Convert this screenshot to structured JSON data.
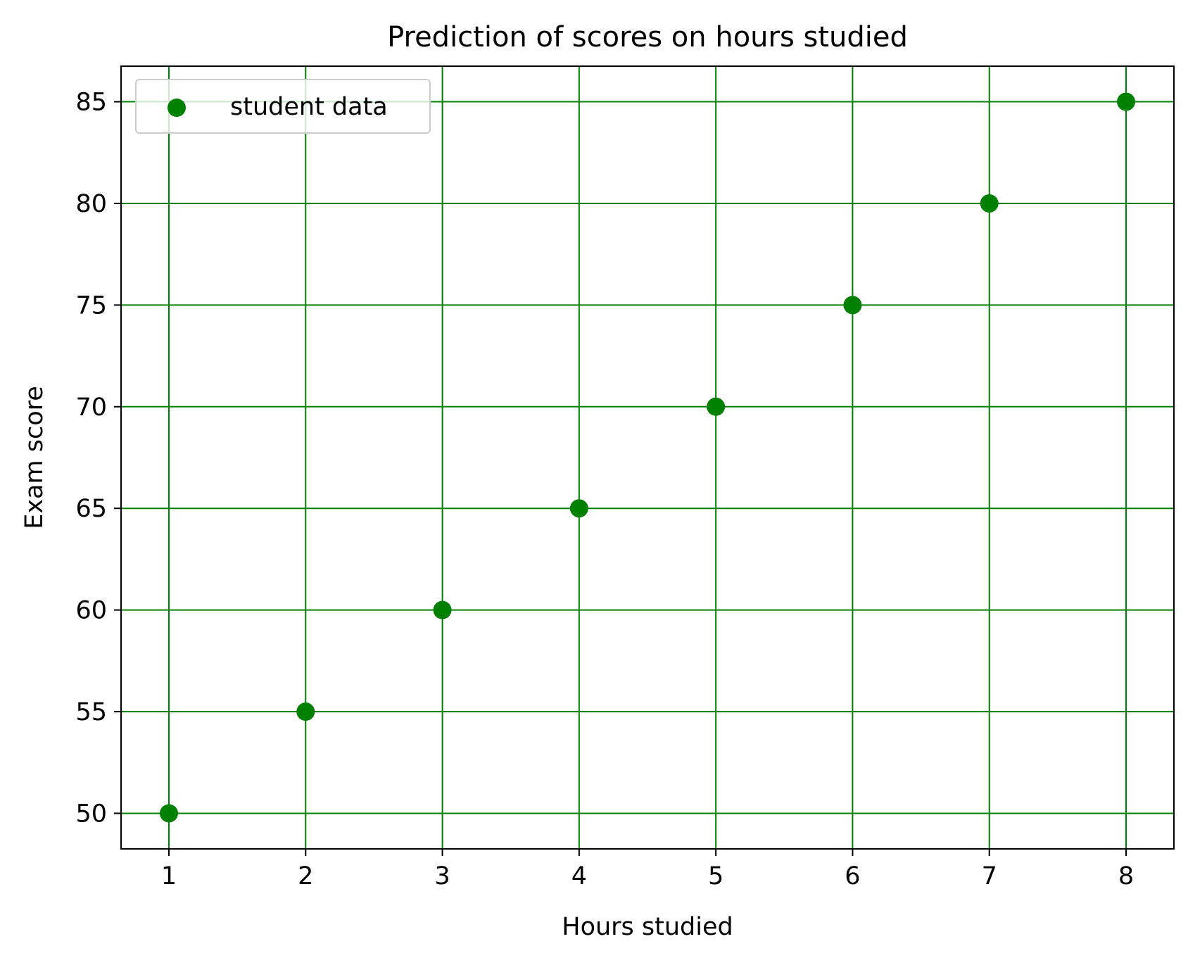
{
  "chart_data": {
    "type": "scatter",
    "title": "Prediction of scores on hours studied",
    "xlabel": "Hours studied",
    "ylabel": "Exam score",
    "xlim": [
      0.65,
      8.35
    ],
    "ylim": [
      48.25,
      86.75
    ],
    "xticks": [
      1,
      2,
      3,
      4,
      5,
      6,
      7,
      8
    ],
    "yticks": [
      50,
      55,
      60,
      65,
      70,
      75,
      80,
      85
    ],
    "grid": true,
    "grid_color": "#008000",
    "legend_position": "top-left",
    "series": [
      {
        "name": "student data",
        "color": "#008000",
        "marker": "circle",
        "x": [
          1,
          2,
          3,
          4,
          5,
          6,
          7,
          8
        ],
        "y": [
          50,
          55,
          60,
          65,
          70,
          75,
          80,
          85
        ]
      }
    ]
  }
}
